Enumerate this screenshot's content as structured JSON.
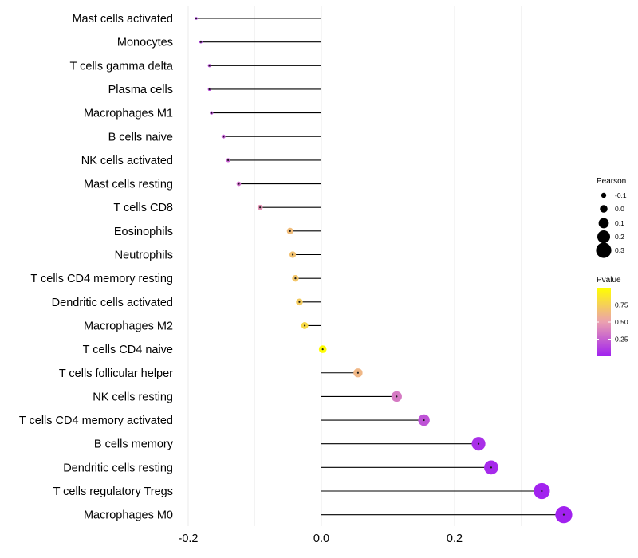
{
  "chart_data": {
    "type": "lollipop",
    "title": "",
    "xlabel": "",
    "ylabel": "",
    "xlim": [
      -0.2,
      0.36
    ],
    "x_ticks": [
      -0.2,
      0.0,
      0.2
    ],
    "x_tick_labels": [
      "-0.2",
      "0.0",
      "0.2"
    ],
    "grid": true,
    "points": [
      {
        "category": "Mast cells activated",
        "pearson": -0.188,
        "pvalue": 0.1
      },
      {
        "category": "Monocytes",
        "pearson": -0.181,
        "pvalue": 0.12
      },
      {
        "category": "T cells gamma delta",
        "pearson": -0.168,
        "pvalue": 0.17
      },
      {
        "category": "Plasma cells",
        "pearson": -0.168,
        "pvalue": 0.17
      },
      {
        "category": "Macrophages M1",
        "pearson": -0.165,
        "pvalue": 0.18
      },
      {
        "category": "B cells naive",
        "pearson": -0.147,
        "pvalue": 0.22
      },
      {
        "category": "NK cells activated",
        "pearson": -0.14,
        "pvalue": 0.25
      },
      {
        "category": "Mast cells resting",
        "pearson": -0.124,
        "pvalue": 0.3
      },
      {
        "category": "T cells CD8",
        "pearson": -0.092,
        "pvalue": 0.45
      },
      {
        "category": "Eosinophils",
        "pearson": -0.047,
        "pvalue": 0.65
      },
      {
        "category": "Neutrophils",
        "pearson": -0.043,
        "pvalue": 0.68
      },
      {
        "category": "T cells CD4 memory resting",
        "pearson": -0.039,
        "pvalue": 0.7
      },
      {
        "category": "Dendritic cells activated",
        "pearson": -0.033,
        "pvalue": 0.73
      },
      {
        "category": "Macrophages M2",
        "pearson": -0.025,
        "pvalue": 0.8
      },
      {
        "category": "T cells CD4 naive",
        "pearson": 0.002,
        "pvalue": 0.99
      },
      {
        "category": "T cells follicular helper",
        "pearson": 0.055,
        "pvalue": 0.62
      },
      {
        "category": "NK cells resting",
        "pearson": 0.113,
        "pvalue": 0.35
      },
      {
        "category": "T cells CD4 memory activated",
        "pearson": 0.154,
        "pvalue": 0.2
      },
      {
        "category": "B cells memory",
        "pearson": 0.236,
        "pvalue": 0.06
      },
      {
        "category": "Dendritic cells resting",
        "pearson": 0.255,
        "pvalue": 0.04
      },
      {
        "category": "T cells regulatory  Tregs ",
        "pearson": 0.331,
        "pvalue": 0.01
      },
      {
        "category": "Macrophages M0",
        "pearson": 0.364,
        "pvalue": 0.005
      }
    ],
    "legend_size": {
      "title": "Pearson",
      "labels": [
        "-0.1",
        "0.0",
        "0.1",
        "0.2",
        "0.3"
      ],
      "values": [
        -0.1,
        0.0,
        0.1,
        0.2,
        0.3
      ]
    },
    "legend_color": {
      "title": "Pvalue",
      "labels": [
        "0.75",
        "0.50",
        "0.25"
      ],
      "values": [
        0.75,
        0.5,
        0.25
      ],
      "range": [
        0.0,
        1.0
      ],
      "colors": {
        "low": "#a020f0",
        "mid": "#eba0b0",
        "high": "#ffff00"
      }
    },
    "colors": {
      "stem": "#000000",
      "grid": "#ebebeb",
      "text": "#000000"
    }
  }
}
